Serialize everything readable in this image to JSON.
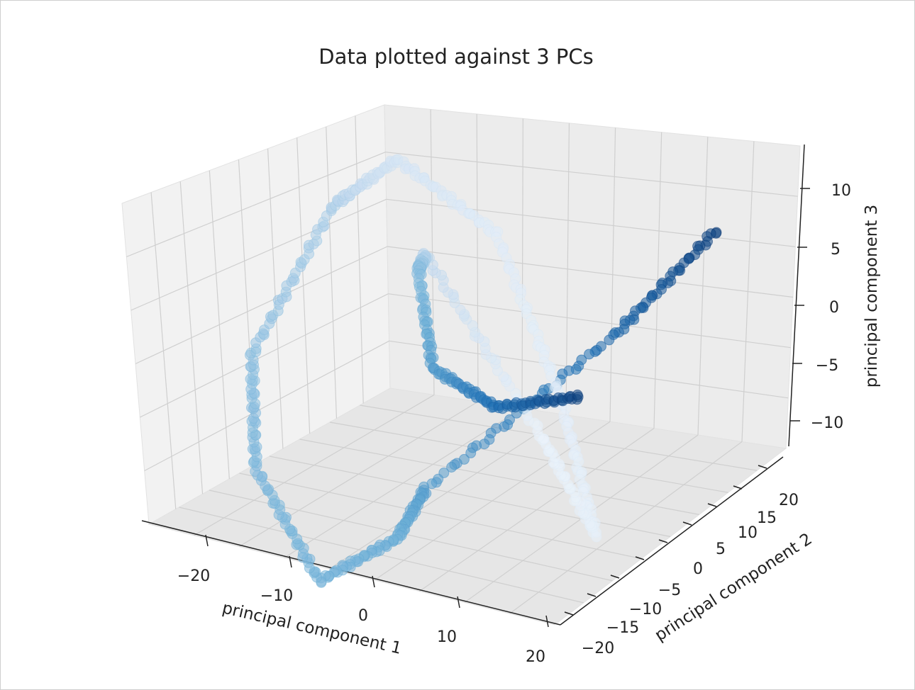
{
  "chart_data": {
    "type": "scatter",
    "title": "Data plotted against 3 PCs",
    "xlabel": "principal component 1",
    "ylabel": "principal component 2",
    "zlabel": "principal component 3",
    "xlim": [
      -27,
      27
    ],
    "ylim": [
      -23,
      23
    ],
    "zlim": [
      -13,
      13
    ],
    "x_ticks": [
      "−20",
      "−10",
      "0",
      "10",
      "20"
    ],
    "y_ticks": [
      "−20",
      "−15",
      "−10",
      "−5",
      "0",
      "5",
      "10",
      "15",
      "20"
    ],
    "z_ticks": [
      "−10",
      "−5",
      "0",
      "5",
      "10"
    ],
    "colormap": "Blues",
    "colormap_stops": [
      "#eef5fc",
      "#c6dbef",
      "#6baed6",
      "#2171b5",
      "#08306b"
    ],
    "grid": true,
    "pane_color": "#f2f2f2",
    "points_per_segment": 40,
    "path_segments": [
      {
        "from": [
          18,
          2
        ],
        "to": [
          9,
          -3
        ],
        "c": [
          0.92,
          0.78
        ]
      },
      {
        "from": [
          9,
          -3
        ],
        "to": [
          -18,
          6
        ],
        "c": [
          0.78,
          0.55
        ]
      },
      {
        "from": [
          -18,
          6
        ],
        "to": [
          -19,
          12
        ],
        "c": [
          0.55,
          0.48
        ]
      },
      {
        "from": [
          -19,
          12
        ],
        "to": [
          -3,
          10
        ],
        "c": [
          0.48,
          0.45
        ]
      },
      {
        "from": [
          -3,
          10
        ],
        "to": [
          6,
          6
        ],
        "c": [
          0.45,
          0.42
        ]
      },
      {
        "from": [
          6,
          6
        ],
        "to": [
          15,
          -8
        ],
        "c": [
          0.42,
          0.38
        ]
      },
      {
        "from": [
          15,
          -8
        ],
        "to": [
          -16,
          6
        ],
        "c": [
          0.38,
          0.3
        ]
      },
      {
        "from": [
          -16,
          6
        ],
        "to": [
          -22,
          -7
        ],
        "c": [
          0.3,
          0.15
        ]
      },
      {
        "from": [
          -22,
          -7
        ],
        "to": [
          -10,
          -10
        ],
        "c": [
          0.15,
          0.08
        ]
      },
      {
        "from": [
          -10,
          -10
        ],
        "to": [
          -5,
          -9
        ],
        "c": [
          0.08,
          0.06
        ]
      },
      {
        "from": [
          -5,
          -9
        ],
        "to": [
          8,
          8
        ],
        "c": [
          0.06,
          0.04
        ]
      },
      {
        "from": [
          8,
          8
        ],
        "to": [
          -5,
          4
        ],
        "c": [
          0.04,
          0.02
        ]
      },
      {
        "from": [
          -5,
          4
        ],
        "to": [
          -8,
          -3
        ],
        "c": [
          0.02,
          0.25
        ]
      },
      {
        "from": [
          -8,
          -3
        ],
        "to": [
          -3,
          -4
        ],
        "c": [
          0.25,
          0.4
        ]
      },
      {
        "from": [
          -3,
          -4
        ],
        "to": [
          -2,
          -7
        ],
        "c": [
          0.4,
          0.55
        ]
      },
      {
        "from": [
          -2,
          -7
        ],
        "to": [
          10,
          -5
        ],
        "c": [
          0.55,
          0.75
        ]
      },
      {
        "from": [
          10,
          -5
        ],
        "to": [
          18,
          2
        ],
        "c": [
          0.75,
          0.92
        ]
      }
    ]
  }
}
